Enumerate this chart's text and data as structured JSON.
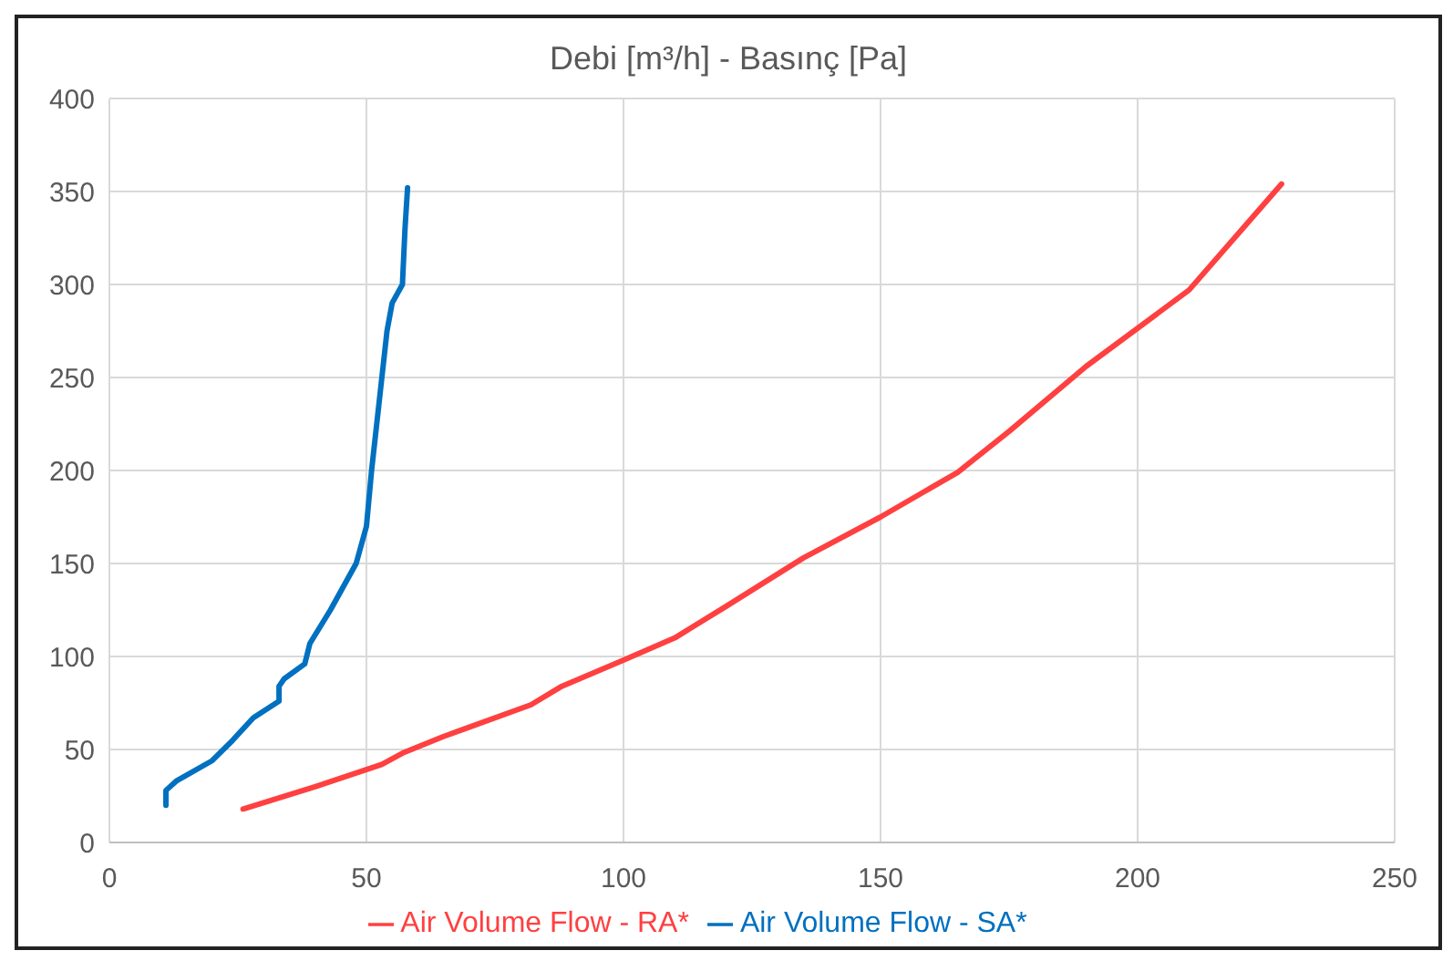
{
  "chart_data": {
    "type": "line",
    "title": "Debi [m³/h] - Basınç [Pa]",
    "xlim": [
      0,
      250
    ],
    "xticks": [
      0,
      50,
      100,
      150,
      200,
      250
    ],
    "ylim": [
      0,
      400
    ],
    "yticks": [
      0,
      50,
      100,
      150,
      200,
      250,
      300,
      350,
      400
    ],
    "grid": true,
    "legend": "bottom",
    "marker": "none",
    "line_style": "solid",
    "series": [
      {
        "name": "Air Volume Flow - SA*",
        "color": "#0070c0",
        "x": [
          11,
          11,
          13,
          20,
          24,
          28,
          33,
          33,
          34,
          38,
          39,
          43,
          48,
          50,
          51,
          53,
          54,
          55,
          57,
          57.5,
          58
        ],
        "values": [
          20,
          28,
          33,
          44,
          55,
          67,
          76,
          84,
          88,
          96,
          107,
          125,
          150,
          170,
          200,
          250,
          275,
          290,
          300,
          330,
          352
        ]
      },
      {
        "name": "Air Volume Flow - RA*",
        "color": "#ff4040",
        "x": [
          26,
          40,
          53,
          57,
          65,
          82,
          88,
          100,
          110,
          120,
          135,
          150,
          165,
          175,
          190,
          210,
          228
        ],
        "values": [
          18,
          30,
          42,
          48,
          57,
          74,
          84,
          98,
          110,
          127,
          153,
          175,
          199,
          221,
          256,
          297,
          354
        ]
      }
    ]
  }
}
